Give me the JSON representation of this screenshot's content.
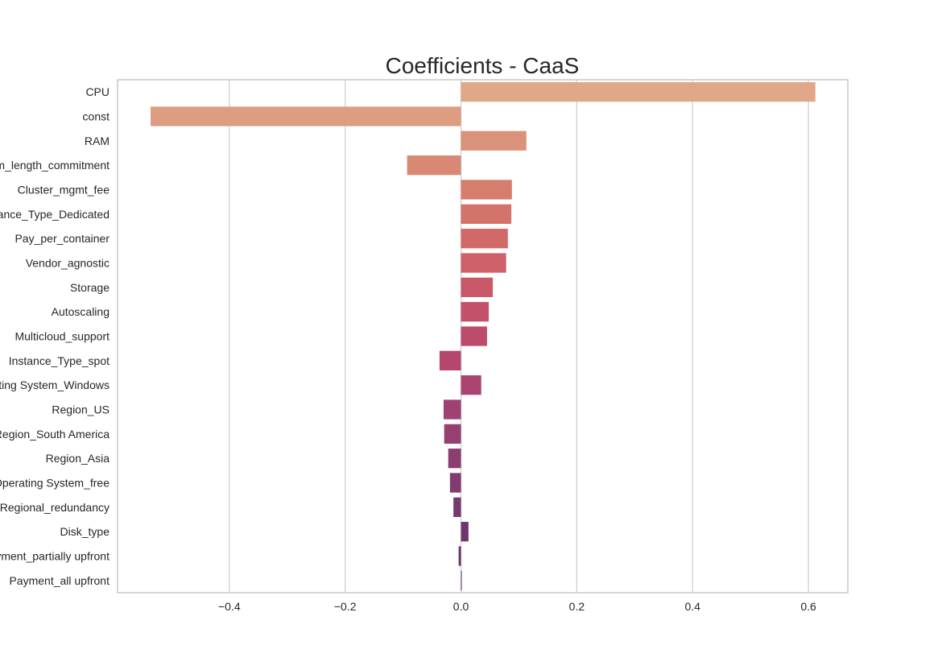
{
  "chart_data": {
    "type": "bar",
    "orientation": "horizontal",
    "title": "Coefficients - CaaS",
    "xlabel": "",
    "ylabel": "",
    "xlim": [
      -0.593,
      0.668
    ],
    "xticks": [
      -0.4,
      -0.2,
      0.0,
      0.2,
      0.4,
      0.6
    ],
    "xtick_labels": [
      "−0.4",
      "−0.2",
      "0.0",
      "0.2",
      "0.4",
      "0.6"
    ],
    "grid": "vertical",
    "palette": "flare",
    "categories": [
      "CPU",
      "const",
      "RAM",
      "Term_length_commitment",
      "Cluster_mgmt_fee",
      "Instance_Type_Dedicated",
      "Pay_per_container",
      "Vendor_agnostic",
      "Storage",
      "Autoscaling",
      "Multicloud_support",
      "Instance_Type_spot",
      "Operating System_Windows",
      "Region_US",
      "Region_South America",
      "Region_Asia",
      "Operating System_free",
      "Regional_redundancy",
      "Disk_type",
      "Payment_partially upfront",
      "Payment_all upfront"
    ],
    "values": [
      0.612,
      -0.536,
      0.113,
      -0.093,
      0.088,
      0.087,
      0.081,
      0.078,
      0.055,
      0.048,
      0.045,
      -0.037,
      0.035,
      -0.03,
      -0.029,
      -0.022,
      -0.019,
      -0.013,
      0.013,
      -0.004,
      0.001
    ],
    "colors": [
      "#e0a888",
      "#dd9d81",
      "#db927a",
      "#d98873",
      "#d77d6e",
      "#d4736a",
      "#d16968",
      "#cd6068",
      "#c95868",
      "#c4516a",
      "#bd4c6c",
      "#b5476e",
      "#ab4470",
      "#a04271",
      "#964071",
      "#8c3e71",
      "#823b70",
      "#78396f",
      "#6f366d",
      "#66336a",
      "#5e3166"
    ]
  }
}
